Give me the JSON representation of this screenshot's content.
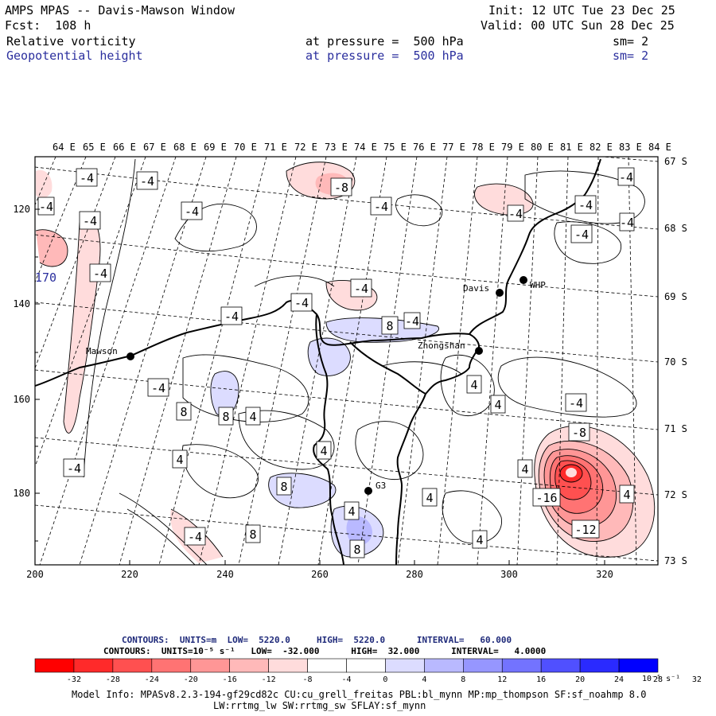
{
  "header": {
    "title": "AMPS MPAS -- Davis-Mawson Window",
    "forecast": "Fcst:  108 h",
    "init": "Init: 12 UTC Tue 23 Dec 25",
    "valid": "Valid: 00 UTC Sun 28 Dec 25",
    "field1": "Relative vorticity",
    "field1_level": "at pressure =  500 hPa",
    "field1_smooth": "sm= 2",
    "field2": "Geopotential height",
    "field2_level": "at pressure =  500 hPa",
    "field2_smooth": "sm= 2"
  },
  "map": {
    "top_longitude_labels": [
      "64 E",
      "65 E",
      "66 E",
      "67 E",
      "68 E",
      "69 E",
      "70 E",
      "71 E",
      "72 E",
      "73 E",
      "74 E",
      "75 E",
      "76 E",
      "77 E",
      "78 E",
      "79 E",
      "80 E",
      "81 E",
      "82 E",
      "83 E",
      "84 E"
    ],
    "right_latitude_labels": [
      "67 S",
      "68 S",
      "69 S",
      "70 S",
      "71 S",
      "72 S",
      "73 S"
    ],
    "left_y_ticks": [
      "120",
      "140",
      "160",
      "180"
    ],
    "bottom_x_ticks": [
      "200",
      "220",
      "240",
      "260",
      "280",
      "300",
      "320"
    ],
    "stations": [
      {
        "name": "Davis"
      },
      {
        "name": "WHP"
      },
      {
        "name": "Mawson"
      },
      {
        "name": "Zhongshan"
      },
      {
        "name": "G3"
      }
    ],
    "height_label": "170",
    "vorticity_labels": [
      "-4",
      "-4",
      "-4",
      "-4",
      "-4",
      "-4",
      "-4",
      "-4",
      "-8",
      "-4",
      "-4",
      "-4",
      "-4",
      "-4",
      "-4",
      "-4",
      "-4",
      "-4",
      "-4",
      "-8",
      "-16",
      "-12",
      "8",
      "8",
      "8",
      "4",
      "4",
      "4",
      "4",
      "4",
      "4",
      "4",
      "4",
      "4",
      "4",
      "8",
      "8",
      "8",
      "-4",
      "-4"
    ]
  },
  "footer": {
    "contours1_label": "CONTOURS:  UNITS=m  LOW=  5220.0     HIGH=  5220.0      INTERVAL=   60.000",
    "contours2_label": "CONTOURS:  UNITS=10⁻⁵ s⁻¹   LOW=  -32.000      HIGH=  32.000      INTERVAL=   4.0000",
    "colorbar_labels": [
      "-32",
      "-28",
      "-24",
      "-20",
      "-16",
      "-12",
      "-8",
      "-4",
      "0",
      "4",
      "8",
      "12",
      "16",
      "20",
      "24",
      "28",
      "32"
    ],
    "colorbar_units": "10⁻⁵ s⁻¹",
    "colorbar_colors": [
      "#ff0000",
      "#ff2a2a",
      "#ff5050",
      "#ff7373",
      "#ff9696",
      "#ffb9b9",
      "#ffdcdc",
      "#ffffff",
      "#ffffff",
      "#dcdcff",
      "#b9b9ff",
      "#9696ff",
      "#7373ff",
      "#5050ff",
      "#2a2aff",
      "#0000ff"
    ],
    "model_info": "Model Info: MPASv8.2.3-194-gf29cd82c CU:cu_grell_freitas PBL:bl_mynn MP:mp_thompson SF:sf_noahmp 8.0",
    "model_info2": "LW:rrtmg_lw SW:rrtmg_sw SFLAY:sf_mynn"
  }
}
